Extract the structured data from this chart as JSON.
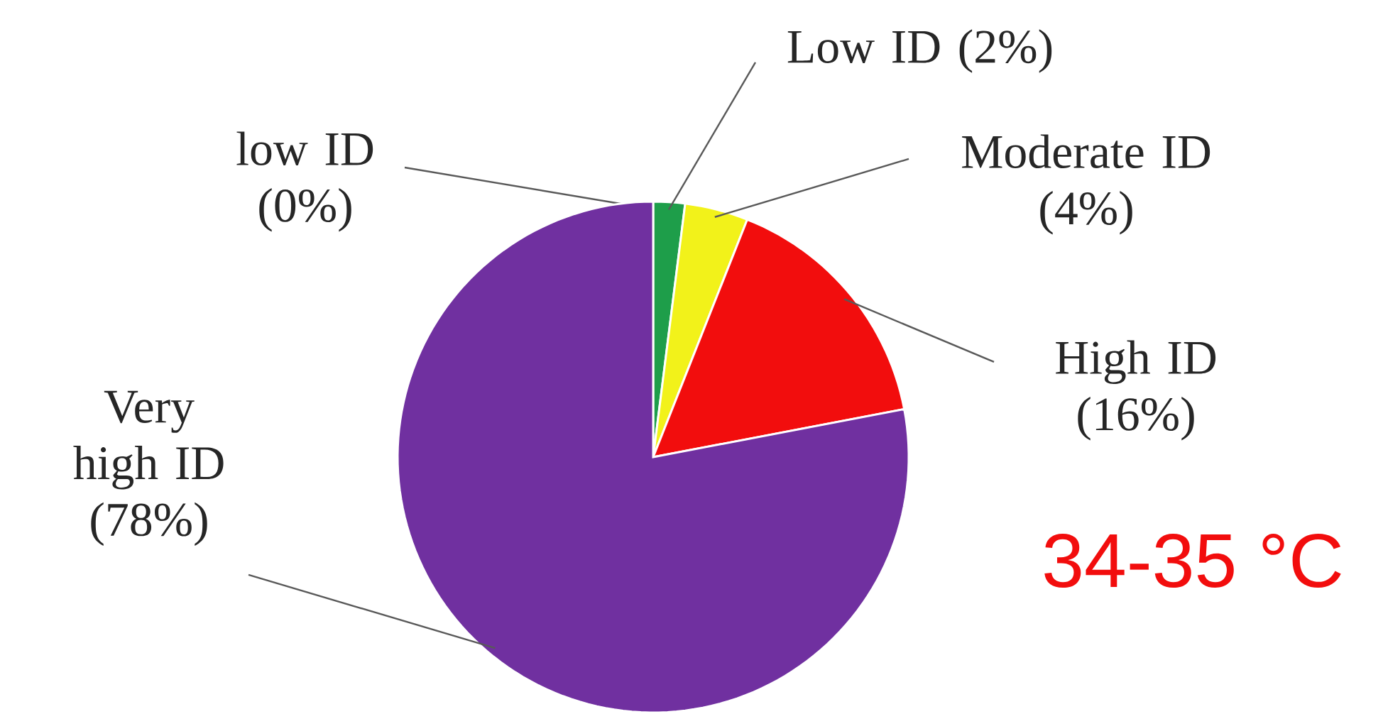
{
  "chart_data": {
    "type": "pie",
    "title": "34-35 °C",
    "categories": [
      "low ID",
      "Low ID",
      "Moderate ID",
      "High ID",
      "Very high ID"
    ],
    "values": [
      0,
      2,
      4,
      16,
      78
    ],
    "value_labels": [
      "(0%)",
      "(2%)",
      "(4%)",
      "(16%)",
      "(78%)"
    ],
    "colors": [
      "#1e9e4a",
      "#1e9e4a",
      "#f2f21a",
      "#f20d0d",
      "#7030a0"
    ]
  }
}
